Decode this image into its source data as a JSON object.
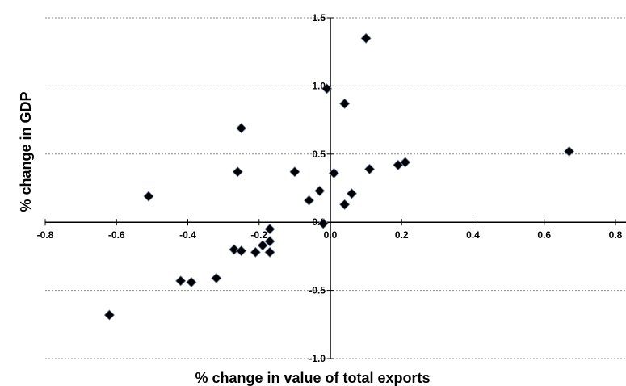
{
  "chart_data": {
    "type": "scatter",
    "title": "",
    "xlabel": "% change in value of total exports",
    "ylabel": "% change in GDP",
    "xlim": [
      -0.8,
      0.8
    ],
    "ylim": [
      -1.0,
      1.5
    ],
    "x_ticks": [
      -0.8,
      -0.6,
      -0.4,
      -0.2,
      0.0,
      0.2,
      0.4,
      0.6,
      0.8
    ],
    "x_tick_labels": [
      "-0.8",
      "-0.6",
      "-0.4",
      "-0.2",
      "0.0",
      "0.2",
      "0.4",
      "0.6",
      "0.8"
    ],
    "y_ticks": [
      1.5,
      1.0,
      0.5,
      0.0,
      -0.5,
      -1.0
    ],
    "y_tick_labels": [
      "1.5",
      "1.0",
      "0.5",
      "0.0",
      "-0.5",
      "-1.0"
    ],
    "grid": "horizontal dashed",
    "marker": "diamond",
    "marker_color": "#000000",
    "points": [
      {
        "x": 0.1,
        "y": 1.35
      },
      {
        "x": -0.01,
        "y": 0.98
      },
      {
        "x": 0.04,
        "y": 0.87
      },
      {
        "x": -0.25,
        "y": 0.69
      },
      {
        "x": 0.67,
        "y": 0.52
      },
      {
        "x": 0.21,
        "y": 0.44
      },
      {
        "x": 0.19,
        "y": 0.42
      },
      {
        "x": 0.11,
        "y": 0.39
      },
      {
        "x": -0.26,
        "y": 0.37
      },
      {
        "x": -0.1,
        "y": 0.37
      },
      {
        "x": 0.01,
        "y": 0.36
      },
      {
        "x": -0.03,
        "y": 0.23
      },
      {
        "x": 0.06,
        "y": 0.21
      },
      {
        "x": -0.51,
        "y": 0.19
      },
      {
        "x": -0.06,
        "y": 0.16
      },
      {
        "x": 0.04,
        "y": 0.13
      },
      {
        "x": -0.02,
        "y": -0.01
      },
      {
        "x": -0.17,
        "y": -0.05
      },
      {
        "x": -0.17,
        "y": -0.14
      },
      {
        "x": -0.27,
        "y": -0.2
      },
      {
        "x": -0.25,
        "y": -0.21
      },
      {
        "x": -0.21,
        "y": -0.22
      },
      {
        "x": -0.17,
        "y": -0.22
      },
      {
        "x": -0.19,
        "y": -0.17
      },
      {
        "x": -0.32,
        "y": -0.41
      },
      {
        "x": -0.42,
        "y": -0.43
      },
      {
        "x": -0.39,
        "y": -0.44
      },
      {
        "x": -0.62,
        "y": -0.68
      }
    ]
  }
}
